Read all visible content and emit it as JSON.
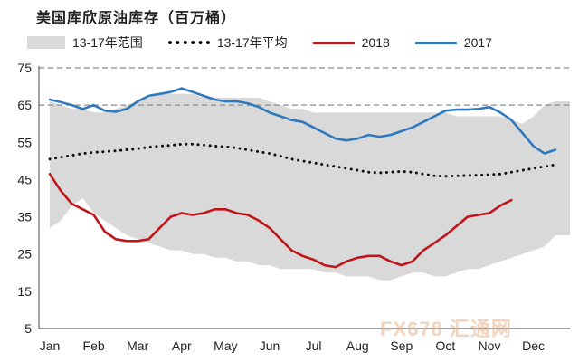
{
  "title": "美国库欣原油库存（百万桶）",
  "watermark": "FX678 汇通网",
  "chart_data": {
    "type": "line",
    "title": "美国库欣原油库存（百万桶）",
    "xlabel": "",
    "ylabel": "",
    "months": [
      "Jan",
      "Feb",
      "Mar",
      "Apr",
      "May",
      "Jun",
      "Jul",
      "Aug",
      "Sep",
      "Oct",
      "Nov",
      "Dec"
    ],
    "ylim": [
      5,
      75
    ],
    "yticks": [
      5,
      15,
      25,
      35,
      45,
      55,
      65,
      75
    ],
    "reference_lines": [
      65,
      75
    ],
    "legend": {
      "placement": "top",
      "entries": [
        {
          "label": "13-17年范围",
          "color": "#d9d9d9"
        },
        {
          "label": "13-17年平均",
          "color": "#111111"
        },
        {
          "label": "2018",
          "color": "#c0161b"
        },
        {
          "label": "2017",
          "color": "#2f7abf"
        }
      ]
    },
    "x": [
      0,
      0.25,
      0.5,
      0.75,
      1,
      1.25,
      1.5,
      1.75,
      2,
      2.25,
      2.5,
      2.75,
      3,
      3.25,
      3.5,
      3.75,
      4,
      4.25,
      4.5,
      4.75,
      5,
      5.25,
      5.5,
      5.75,
      6,
      6.25,
      6.5,
      6.75,
      7,
      7.25,
      7.5,
      7.75,
      8,
      8.25,
      8.5,
      8.75,
      9,
      9.25,
      9.5,
      9.75,
      10,
      10.25,
      10.5,
      10.75,
      11,
      11.25,
      11.5
    ],
    "series": [
      {
        "name": "13-17年范围",
        "type": "range",
        "low": [
          32,
          34,
          38,
          40,
          36,
          34,
          32,
          30,
          29,
          28,
          27,
          26,
          26,
          25,
          25,
          24,
          24,
          23,
          23,
          22,
          22,
          21,
          21,
          21,
          21,
          20,
          20,
          19,
          19,
          19,
          18,
          18,
          19,
          20,
          20,
          19,
          19,
          20,
          21,
          21,
          22,
          23,
          24,
          25,
          26,
          27,
          30
        ],
        "high": [
          66,
          65,
          64,
          64,
          63,
          63,
          64,
          65,
          66,
          67,
          68,
          68,
          68,
          68,
          67,
          67,
          67,
          67,
          67,
          67,
          66,
          65,
          64,
          64,
          63,
          63,
          63,
          63,
          63,
          63,
          63,
          63,
          63,
          63,
          63,
          63,
          63,
          62,
          62,
          62,
          62,
          62,
          61,
          60,
          62,
          65,
          66
        ]
      },
      {
        "name": "13-17年平均",
        "type": "line",
        "values": [
          50.5,
          51,
          51.5,
          52,
          52.3,
          52.5,
          52.7,
          53,
          53.3,
          53.7,
          54,
          54.2,
          54.5,
          54.5,
          54.3,
          54,
          53.8,
          53.5,
          53,
          52.5,
          52,
          51.3,
          50.5,
          50,
          49.5,
          49,
          48.5,
          48,
          47.5,
          47,
          46.8,
          47,
          47.2,
          47,
          46.5,
          46,
          45.9,
          46,
          46.1,
          46.2,
          46.3,
          46.5,
          47,
          47.5,
          48,
          48.5,
          49
        ]
      },
      {
        "name": "2018",
        "type": "line",
        "values": [
          46.5,
          42,
          38.5,
          37,
          35.5,
          31,
          29,
          28.5,
          28.5,
          29,
          32,
          35,
          36,
          35.5,
          36,
          37,
          37,
          36,
          35.5,
          34,
          32,
          29,
          26,
          24.5,
          23.5,
          22,
          21.5,
          23,
          24,
          24.5,
          24.5,
          23,
          22,
          23,
          26,
          28,
          30,
          32.5,
          35,
          35.5,
          36,
          38,
          39.5,
          null,
          null,
          null,
          null
        ]
      },
      {
        "name": "2017",
        "type": "line",
        "values": [
          66.5,
          65.8,
          65,
          64,
          65,
          63.5,
          63.2,
          64,
          66,
          67.5,
          68,
          68.5,
          69.5,
          68.5,
          67.5,
          66.5,
          66,
          66,
          65.5,
          64.5,
          63,
          62,
          61,
          60.5,
          59,
          57.5,
          56,
          55.5,
          56,
          57,
          56.5,
          57,
          58,
          59,
          60.5,
          62,
          63.5,
          63.8,
          63.8,
          64,
          64.5,
          63,
          61,
          57.5,
          54,
          52,
          53
        ]
      }
    ]
  }
}
